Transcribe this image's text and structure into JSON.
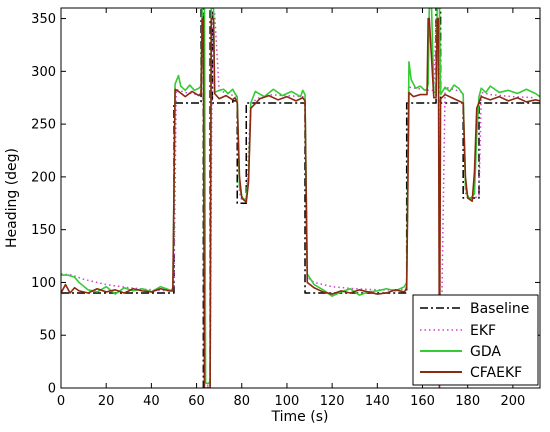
{
  "chart_data": {
    "type": "line",
    "title": "",
    "xlabel": "Time (s)",
    "ylabel": "Heading (deg)",
    "xlim": [
      0,
      212
    ],
    "ylim": [
      0,
      360
    ],
    "xticks": [
      0,
      20,
      40,
      60,
      80,
      100,
      120,
      140,
      160,
      180,
      200
    ],
    "yticks": [
      0,
      50,
      100,
      150,
      200,
      250,
      300,
      350
    ],
    "grid": false,
    "legend_position": "bottom-right",
    "series": [
      {
        "name": "Baseline",
        "color": "#000000",
        "style": "dash-dot",
        "x": [
          0,
          50,
          50,
          62,
          62,
          63,
          63,
          66,
          66,
          67,
          67,
          76,
          76,
          78,
          78,
          82,
          82,
          84,
          84,
          108,
          108,
          153,
          153,
          162,
          162,
          166,
          166,
          168,
          168,
          178,
          178,
          180,
          180,
          185,
          185,
          212
        ],
        "y": [
          90,
          90,
          270,
          270,
          360,
          360,
          0,
          0,
          360,
          360,
          270,
          270,
          272,
          272,
          175,
          175,
          270,
          270,
          270,
          270,
          90,
          90,
          270,
          270,
          270,
          270,
          360,
          360,
          270,
          270,
          180,
          180,
          180,
          180,
          270,
          270
        ]
      },
      {
        "name": "EKF",
        "color": "#cc44cc",
        "style": "dotted",
        "x": [
          0,
          5,
          10,
          20,
          30,
          40,
          48,
          50,
          51,
          55,
          60,
          62,
          62.5,
          63,
          63.5,
          65,
          66,
          67,
          68,
          70,
          75,
          78,
          79,
          80,
          82,
          84,
          90,
          100,
          107,
          108,
          109,
          112,
          120,
          130,
          140,
          150,
          153,
          154,
          160,
          163,
          165,
          166,
          167,
          168,
          170,
          175,
          178,
          179,
          180,
          183,
          185,
          186,
          190,
          200,
          210
        ],
        "y": [
          108,
          107,
          103,
          98,
          95,
          93,
          92,
          95,
          283,
          280,
          278,
          278,
          355,
          355,
          3,
          2,
          2,
          355,
          355,
          282,
          278,
          276,
          185,
          178,
          178,
          270,
          278,
          277,
          276,
          275,
          105,
          100,
          96,
          94,
          93,
          93,
          95,
          285,
          283,
          282,
          282,
          350,
          350,
          5,
          285,
          282,
          280,
          185,
          180,
          180,
          182,
          280,
          278,
          276,
          275
        ]
      },
      {
        "name": "GDA",
        "color": "#33cc33",
        "style": "solid",
        "x": [
          0,
          3,
          6,
          8,
          12,
          16,
          20,
          24,
          28,
          32,
          36,
          40,
          44,
          48,
          49.5,
          50.5,
          52,
          53,
          55,
          57,
          59,
          61,
          62,
          62.5,
          63,
          63.5,
          64,
          65,
          66,
          66.5,
          67,
          67.5,
          68,
          70,
          72,
          74,
          76,
          77,
          78,
          79,
          80,
          81,
          82,
          83,
          84,
          86,
          90,
          94,
          98,
          102,
          106,
          107,
          108,
          109,
          112,
          116,
          120,
          124,
          128,
          132,
          136,
          140,
          144,
          148,
          152,
          153,
          154,
          155,
          157,
          159,
          161,
          162,
          162.5,
          163,
          164,
          165,
          166,
          166.5,
          167,
          167.5,
          168,
          170,
          172,
          174,
          176,
          177,
          178,
          179,
          180,
          181,
          183,
          184,
          185,
          186,
          188,
          190,
          194,
          198,
          202,
          206,
          210,
          212
        ],
        "y": [
          107,
          107,
          105,
          100,
          93,
          91,
          96,
          89,
          95,
          92,
          94,
          91,
          96,
          93,
          92,
          288,
          296,
          286,
          282,
          287,
          282,
          284,
          286,
          360,
          360,
          360,
          5,
          4,
          6,
          360,
          360,
          360,
          280,
          282,
          283,
          279,
          283,
          279,
          276,
          190,
          182,
          178,
          180,
          200,
          270,
          281,
          276,
          283,
          277,
          281,
          276,
          282,
          278,
          108,
          98,
          93,
          87,
          91,
          94,
          88,
          91,
          92,
          94,
          92,
          96,
          100,
          309,
          292,
          284,
          286,
          282,
          283,
          288,
          360,
          360,
          280,
          280,
          360,
          360,
          360,
          278,
          285,
          281,
          287,
          284,
          281,
          278,
          190,
          182,
          179,
          184,
          240,
          276,
          284,
          280,
          286,
          280,
          282,
          279,
          283,
          279,
          276
        ]
      },
      {
        "name": "CFAEKF",
        "color": "#8b2a10",
        "style": "solid",
        "x": [
          0,
          2,
          4,
          6,
          8,
          12,
          16,
          20,
          24,
          28,
          32,
          36,
          40,
          44,
          48,
          49.5,
          50.5,
          52,
          55,
          58,
          61,
          62,
          62.5,
          63,
          63.5,
          65,
          66,
          66.5,
          67,
          67.5,
          68,
          70,
          73,
          76,
          77,
          78,
          79,
          80,
          82,
          83,
          84,
          88,
          92,
          96,
          100,
          104,
          107,
          108,
          109,
          112,
          116,
          120,
          124,
          128,
          132,
          136,
          140,
          144,
          148,
          152,
          153,
          154,
          156,
          159,
          162,
          162.5,
          163,
          165,
          166,
          166.5,
          167,
          167.5,
          168,
          170,
          173,
          176,
          178,
          179,
          180,
          182,
          183,
          184,
          186,
          190,
          194,
          198,
          202,
          206,
          210,
          212
        ],
        "y": [
          90,
          98,
          90,
          95,
          92,
          90,
          94,
          91,
          93,
          90,
          94,
          92,
          91,
          94,
          92,
          92,
          283,
          281,
          276,
          281,
          277,
          279,
          350,
          350,
          0,
          0,
          0,
          350,
          350,
          350,
          279,
          274,
          277,
          273,
          275,
          270,
          200,
          180,
          176,
          195,
          265,
          274,
          277,
          273,
          276,
          272,
          275,
          272,
          100,
          95,
          91,
          89,
          92,
          90,
          93,
          91,
          89,
          90,
          93,
          91,
          95,
          280,
          276,
          278,
          278,
          350,
          350,
          275,
          275,
          350,
          350,
          0,
          274,
          278,
          275,
          272,
          270,
          200,
          180,
          177,
          205,
          265,
          276,
          273,
          276,
          272,
          275,
          271,
          273,
          272
        ]
      }
    ]
  }
}
